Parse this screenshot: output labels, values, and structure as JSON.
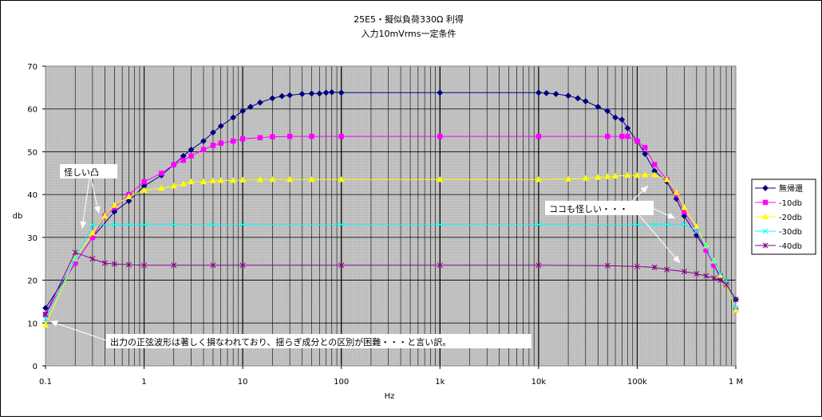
{
  "chart_data": {
    "type": "line",
    "title": "25E5・擬似負荷330Ω 利得",
    "subtitle": "入力10mVrms一定条件",
    "xlabel": "Hz",
    "ylabel": "db",
    "x_scale": "log",
    "xlim": [
      0.1,
      1000000
    ],
    "ylim": [
      0,
      70
    ],
    "y_ticks": [
      0,
      10,
      20,
      30,
      40,
      50,
      60,
      70
    ],
    "x_ticks": [
      {
        "v": 0.1,
        "label": "0.1"
      },
      {
        "v": 1,
        "label": "1"
      },
      {
        "v": 10,
        "label": "10"
      },
      {
        "v": 100,
        "label": "100"
      },
      {
        "v": 1000,
        "label": "1k"
      },
      {
        "v": 10000,
        "label": "10k"
      },
      {
        "v": 100000,
        "label": "100k"
      },
      {
        "v": 1000000,
        "label": "1 M"
      }
    ],
    "grid": true,
    "plot_background": "#c0c0c0",
    "legend_position": "right",
    "series": [
      {
        "name": "無帰還",
        "color": "#000080",
        "marker": "diamond",
        "points": [
          [
            0.1,
            13.5
          ],
          [
            0.2,
            24
          ],
          [
            0.3,
            30
          ],
          [
            0.5,
            36
          ],
          [
            0.7,
            38.5
          ],
          [
            1,
            42
          ],
          [
            1.5,
            44.5
          ],
          [
            2,
            47
          ],
          [
            2.5,
            49
          ],
          [
            3,
            50.5
          ],
          [
            4,
            52.5
          ],
          [
            5,
            54.5
          ],
          [
            6,
            56
          ],
          [
            8,
            58
          ],
          [
            10,
            59.5
          ],
          [
            12,
            60.5
          ],
          [
            15,
            61.5
          ],
          [
            20,
            62.5
          ],
          [
            25,
            63
          ],
          [
            30,
            63.2
          ],
          [
            40,
            63.5
          ],
          [
            50,
            63.6
          ],
          [
            60,
            63.6
          ],
          [
            70,
            63.8
          ],
          [
            80,
            63.9
          ],
          [
            100,
            63.8
          ],
          [
            1000,
            63.8
          ],
          [
            10000,
            63.8
          ],
          [
            12000,
            63.7
          ],
          [
            15000,
            63.5
          ],
          [
            20000,
            63.1
          ],
          [
            25000,
            62.5
          ],
          [
            30000,
            61.8
          ],
          [
            40000,
            60.5
          ],
          [
            50000,
            59.5
          ],
          [
            60000,
            58
          ],
          [
            70000,
            57.5
          ],
          [
            80000,
            55.5
          ],
          [
            100000,
            52.5
          ],
          [
            120000,
            49.5
          ],
          [
            150000,
            45.5
          ],
          [
            200000,
            43
          ],
          [
            250000,
            39
          ],
          [
            300000,
            35
          ],
          [
            400000,
            30.5
          ],
          [
            500000,
            27
          ],
          [
            600000,
            23.5
          ],
          [
            700000,
            20.5
          ],
          [
            800000,
            19
          ],
          [
            1000000,
            15.5
          ]
        ]
      },
      {
        "name": "-10db",
        "color": "#ff00ff",
        "marker": "square",
        "points": [
          [
            0.1,
            12
          ],
          [
            0.2,
            24
          ],
          [
            0.3,
            30
          ],
          [
            0.4,
            35
          ],
          [
            0.5,
            37
          ],
          [
            0.7,
            40
          ],
          [
            1,
            43
          ],
          [
            1.5,
            45
          ],
          [
            2,
            47
          ],
          [
            2.5,
            48
          ],
          [
            3,
            49
          ],
          [
            4,
            50.5
          ],
          [
            5,
            51.5
          ],
          [
            6,
            52
          ],
          [
            8,
            52.5
          ],
          [
            10,
            53
          ],
          [
            15,
            53.3
          ],
          [
            20,
            53.5
          ],
          [
            30,
            53.6
          ],
          [
            50,
            53.6
          ],
          [
            100,
            53.6
          ],
          [
            1000,
            53.6
          ],
          [
            10000,
            53.6
          ],
          [
            50000,
            53.6
          ],
          [
            70000,
            53.6
          ],
          [
            80000,
            53.6
          ],
          [
            100000,
            52.5
          ],
          [
            120000,
            51
          ],
          [
            150000,
            47
          ],
          [
            200000,
            43.5
          ],
          [
            250000,
            40
          ],
          [
            300000,
            36
          ],
          [
            400000,
            31.5
          ],
          [
            500000,
            27
          ],
          [
            600000,
            23.5
          ],
          [
            700000,
            21
          ],
          [
            800000,
            19
          ],
          [
            1000000,
            13
          ]
        ]
      },
      {
        "name": "-20db",
        "color": "#ffff00",
        "marker": "triangle",
        "points": [
          [
            0.1,
            9.5
          ],
          [
            0.2,
            25
          ],
          [
            0.3,
            31
          ],
          [
            0.4,
            35
          ],
          [
            0.5,
            37.5
          ],
          [
            0.7,
            39.5
          ],
          [
            1,
            41
          ],
          [
            1.5,
            41.5
          ],
          [
            2,
            42
          ],
          [
            2.5,
            42.5
          ],
          [
            3,
            43
          ],
          [
            4,
            43
          ],
          [
            5,
            43.2
          ],
          [
            6,
            43.3
          ],
          [
            8,
            43.3
          ],
          [
            10,
            43.4
          ],
          [
            15,
            43.5
          ],
          [
            20,
            43.5
          ],
          [
            30,
            43.5
          ],
          [
            50,
            43.5
          ],
          [
            100,
            43.5
          ],
          [
            1000,
            43.5
          ],
          [
            10000,
            43.5
          ],
          [
            20000,
            43.6
          ],
          [
            30000,
            43.8
          ],
          [
            40000,
            44
          ],
          [
            50000,
            44.2
          ],
          [
            60000,
            44.3
          ],
          [
            80000,
            44.5
          ],
          [
            100000,
            44.5
          ],
          [
            120000,
            44.6
          ],
          [
            150000,
            44.6
          ],
          [
            200000,
            43.5
          ],
          [
            250000,
            40.5
          ],
          [
            300000,
            37
          ],
          [
            400000,
            32.5
          ],
          [
            500000,
            28
          ],
          [
            600000,
            24.5
          ],
          [
            700000,
            21
          ],
          [
            800000,
            19
          ],
          [
            1000000,
            13
          ]
        ]
      },
      {
        "name": "-30db",
        "color": "#00ffff",
        "marker": "x",
        "points": [
          [
            0.1,
            11
          ],
          [
            0.2,
            25
          ],
          [
            0.3,
            33
          ],
          [
            0.5,
            33
          ],
          [
            0.7,
            33
          ],
          [
            1,
            33
          ],
          [
            2,
            33
          ],
          [
            5,
            33
          ],
          [
            10,
            33
          ],
          [
            100,
            33
          ],
          [
            1000,
            33
          ],
          [
            10000,
            33
          ],
          [
            100000,
            33
          ],
          [
            150000,
            33
          ],
          [
            200000,
            33
          ],
          [
            300000,
            33
          ],
          [
            400000,
            31.5
          ],
          [
            500000,
            28
          ],
          [
            600000,
            24.5
          ],
          [
            700000,
            21.5
          ],
          [
            800000,
            20
          ],
          [
            1000000,
            13.5
          ]
        ]
      },
      {
        "name": "-40db",
        "color": "#800080",
        "marker": "asterisk",
        "points": [
          [
            0.1,
            12
          ],
          [
            0.2,
            26.5
          ],
          [
            0.3,
            25
          ],
          [
            0.4,
            24
          ],
          [
            0.5,
            23.8
          ],
          [
            0.7,
            23.6
          ],
          [
            1,
            23.5
          ],
          [
            2,
            23.5
          ],
          [
            5,
            23.5
          ],
          [
            10,
            23.5
          ],
          [
            100,
            23.5
          ],
          [
            1000,
            23.5
          ],
          [
            10000,
            23.5
          ],
          [
            50000,
            23.4
          ],
          [
            100000,
            23.2
          ],
          [
            150000,
            23
          ],
          [
            200000,
            22.5
          ],
          [
            300000,
            22
          ],
          [
            400000,
            21.5
          ],
          [
            500000,
            21
          ],
          [
            600000,
            20.5
          ],
          [
            700000,
            20
          ],
          [
            800000,
            19
          ],
          [
            1000000,
            15.5
          ]
        ]
      }
    ],
    "annotations": [
      {
        "id": "note_bump",
        "text": "怪しい凸"
      },
      {
        "id": "note_here",
        "text": "ココも怪しい・・・"
      },
      {
        "id": "note_excuse",
        "text": "出力の正弦波形は著しく損なわれており、揺らぎ成分との区別が困難・・・と言い訳。"
      }
    ]
  }
}
